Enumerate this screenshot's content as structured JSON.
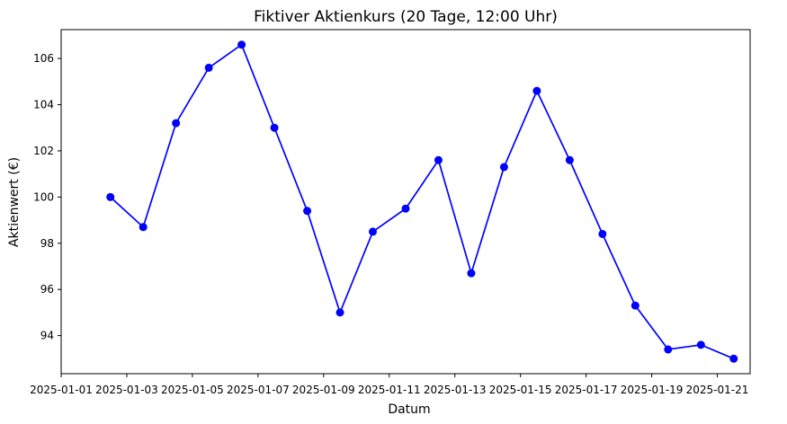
{
  "chart_data": {
    "type": "line",
    "title": "Fiktiver Aktienkurs (20 Tage, 12:00 Uhr)",
    "xlabel": "Datum",
    "ylabel": "Aktienwert (€)",
    "x": [
      "2025-01-02T12:00",
      "2025-01-03T12:00",
      "2025-01-04T12:00",
      "2025-01-05T12:00",
      "2025-01-06T12:00",
      "2025-01-07T12:00",
      "2025-01-08T12:00",
      "2025-01-09T12:00",
      "2025-01-10T12:00",
      "2025-01-11T12:00",
      "2025-01-12T12:00",
      "2025-01-13T12:00",
      "2025-01-14T12:00",
      "2025-01-15T12:00",
      "2025-01-16T12:00",
      "2025-01-17T12:00",
      "2025-01-18T12:00",
      "2025-01-19T12:00",
      "2025-01-20T12:00",
      "2025-01-21T12:00"
    ],
    "series": [
      {
        "color": "#0000ff",
        "marker": "circle",
        "values": [
          100.0,
          98.7,
          103.2,
          105.6,
          106.6,
          103.0,
          99.4,
          95.0,
          98.5,
          99.5,
          101.6,
          96.7,
          101.3,
          104.6,
          101.6,
          98.4,
          95.3,
          93.4,
          93.6,
          93.0
        ]
      }
    ],
    "x_ticks": [
      "2025-01-01",
      "2025-01-03",
      "2025-01-05",
      "2025-01-07",
      "2025-01-09",
      "2025-01-11",
      "2025-01-13",
      "2025-01-15",
      "2025-01-17",
      "2025-01-19",
      "2025-01-21"
    ],
    "y_ticks": [
      94,
      96,
      98,
      100,
      102,
      104,
      106
    ],
    "xlim": [
      "2025-01-01T00:00",
      "2025-01-22T00:00"
    ],
    "ylim": [
      92.35,
      107.25
    ],
    "grid": false,
    "legend": false
  }
}
